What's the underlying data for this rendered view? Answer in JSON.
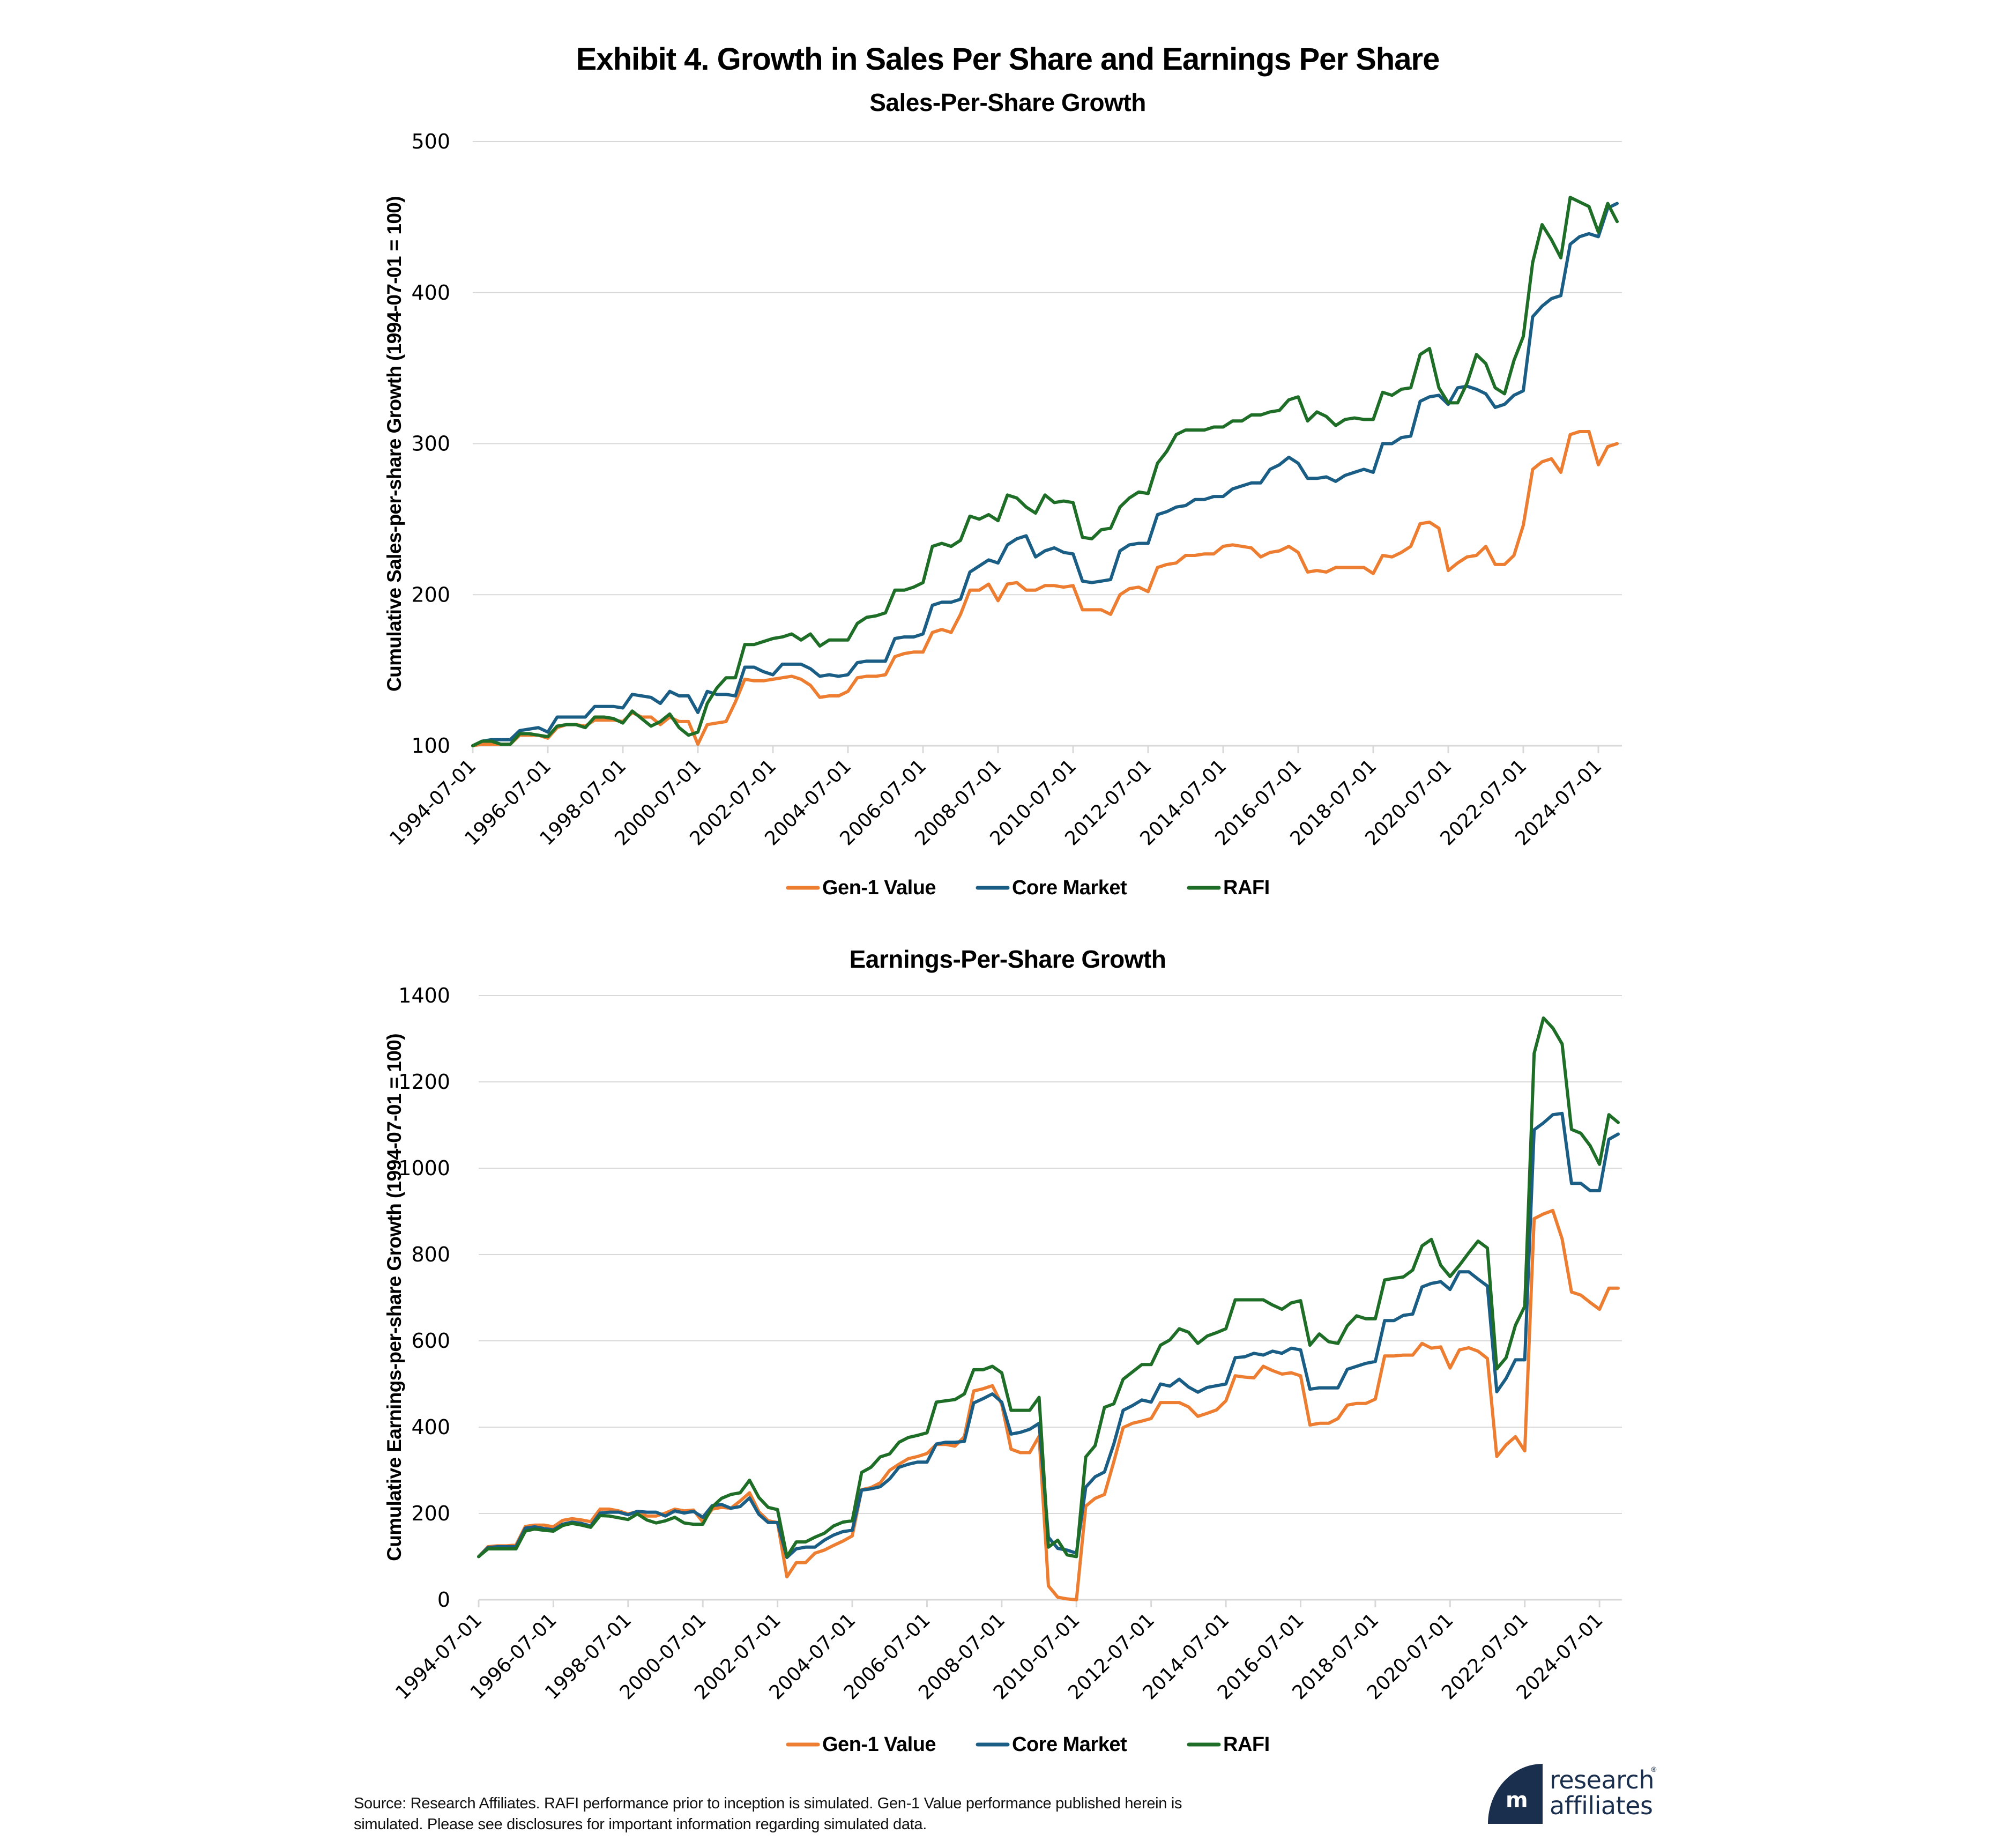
{
  "header": {
    "title": "Exhibit 4. Growth in Sales Per Share and Earnings Per Share"
  },
  "legend": [
    {
      "label": "Gen-1 Value",
      "color": "#ED7D31"
    },
    {
      "label": "Core Market",
      "color": "#1B5E85"
    },
    {
      "label": "RAFI",
      "color": "#1E6E28"
    }
  ],
  "footer": {
    "source_line1": "Source: Research Affiliates. RAFI performance prior to inception is simulated. Gen-1 Value performance published herein is",
    "source_line2": "simulated. Please see disclosures for important information regarding simulated data."
  },
  "logo": {
    "line1": "research",
    "line2": "affiliates",
    "registered": "®",
    "glyph": "m"
  },
  "chart_data": [
    {
      "type": "line",
      "title": "Sales-Per-Share Growth",
      "xlabel": "",
      "ylabel": "Cumulative Sales-per-share Growth (1994-07-01 = 100)",
      "x_start": "1994-07-01",
      "x_frequency": "quarterly",
      "x_end": "2025-01-01",
      "x_tick_labels": [
        "1994-07-01",
        "1996-07-01",
        "1998-07-01",
        "2000-07-01",
        "2002-07-01",
        "2004-07-01",
        "2006-07-01",
        "2008-07-01",
        "2010-07-01",
        "2012-07-01",
        "2014-07-01",
        "2016-07-01",
        "2018-07-01",
        "2020-07-01",
        "2022-07-01",
        "2024-07-01"
      ],
      "ylim": [
        100,
        500
      ],
      "y_ticks": [
        100,
        200,
        300,
        400,
        500
      ],
      "grid": true,
      "legend_position": "bottom-center",
      "series": [
        {
          "name": "Gen-1 Value",
          "color": "#ED7D31",
          "values": [
            100,
            101,
            101,
            101,
            101,
            107,
            107,
            107,
            105,
            112,
            114,
            114,
            113,
            117,
            117,
            117,
            116,
            122,
            119,
            119,
            114,
            119,
            116,
            116,
            101,
            114,
            115,
            116,
            129,
            144,
            143,
            143,
            144,
            145,
            146,
            144,
            140,
            132,
            133,
            133,
            136,
            145,
            146,
            146,
            147,
            159,
            161,
            162,
            162,
            175,
            177,
            175,
            187,
            203,
            203,
            207,
            196,
            207,
            208,
            203,
            203,
            206,
            206,
            205,
            206,
            190,
            190,
            190,
            187,
            200,
            204,
            205,
            202,
            218,
            220,
            221,
            226,
            226,
            227,
            227,
            232,
            233,
            232,
            231,
            225,
            228,
            229,
            232,
            228,
            215,
            216,
            215,
            218,
            218,
            218,
            218,
            214,
            226,
            225,
            228,
            232,
            247,
            248,
            244,
            216,
            221,
            225,
            226,
            232,
            220,
            220,
            226,
            246,
            283,
            288,
            290,
            281,
            306,
            308,
            308,
            286,
            298,
            300
          ]
        },
        {
          "name": "Core Market",
          "color": "#1B5E85",
          "values": [
            100,
            103,
            104,
            104,
            104,
            110,
            111,
            112,
            109,
            119,
            119,
            119,
            119,
            126,
            126,
            126,
            125,
            134,
            133,
            132,
            128,
            136,
            133,
            133,
            122,
            136,
            134,
            134,
            133,
            152,
            152,
            149,
            147,
            154,
            154,
            154,
            151,
            146,
            147,
            146,
            147,
            155,
            156,
            156,
            156,
            171,
            172,
            172,
            174,
            193,
            195,
            195,
            197,
            215,
            219,
            223,
            221,
            233,
            237,
            239,
            225,
            229,
            231,
            228,
            227,
            209,
            208,
            209,
            210,
            229,
            233,
            234,
            234,
            253,
            255,
            258,
            259,
            263,
            263,
            265,
            265,
            270,
            272,
            274,
            274,
            283,
            286,
            291,
            287,
            277,
            277,
            278,
            275,
            279,
            281,
            283,
            281,
            300,
            300,
            304,
            305,
            328,
            331,
            332,
            326,
            337,
            338,
            336,
            333,
            324,
            326,
            332,
            335,
            384,
            391,
            396,
            398,
            432,
            437,
            439,
            437,
            456,
            459
          ]
        },
        {
          "name": "RAFI",
          "color": "#1E6E28",
          "values": [
            100,
            103,
            103,
            101,
            101,
            108,
            108,
            107,
            106,
            113,
            114,
            114,
            112,
            119,
            119,
            118,
            115,
            123,
            118,
            113,
            116,
            121,
            112,
            107,
            109,
            128,
            138,
            145,
            145,
            167,
            167,
            169,
            171,
            172,
            174,
            170,
            174,
            166,
            170,
            170,
            170,
            181,
            185,
            186,
            188,
            203,
            203,
            205,
            208,
            232,
            234,
            232,
            236,
            252,
            250,
            253,
            249,
            266,
            264,
            258,
            254,
            266,
            261,
            262,
            261,
            238,
            237,
            243,
            244,
            258,
            264,
            268,
            267,
            287,
            295,
            306,
            309,
            309,
            309,
            311,
            311,
            315,
            315,
            319,
            319,
            321,
            322,
            329,
            331,
            315,
            321,
            318,
            312,
            316,
            317,
            316,
            316,
            334,
            332,
            336,
            337,
            359,
            363,
            337,
            327,
            327,
            340,
            359,
            353,
            337,
            333,
            355,
            371,
            420,
            445,
            435,
            423,
            463,
            460,
            457,
            440,
            459,
            447
          ]
        }
      ]
    },
    {
      "type": "line",
      "title": "Earnings-Per-Share Growth",
      "xlabel": "",
      "ylabel": "Cumulative Earnings-per-share Growth (1994-07-01 = 100)",
      "x_start": "1994-07-01",
      "x_frequency": "quarterly",
      "x_end": "2025-01-01",
      "x_tick_labels": [
        "1994-07-01",
        "1996-07-01",
        "1998-07-01",
        "2000-07-01",
        "2002-07-01",
        "2004-07-01",
        "2006-07-01",
        "2008-07-01",
        "2010-07-01",
        "2012-07-01",
        "2014-07-01",
        "2016-07-01",
        "2018-07-01",
        "2020-07-01",
        "2022-07-01",
        "2024-07-01"
      ],
      "ylim": [
        0,
        1400
      ],
      "y_ticks": [
        0,
        200,
        400,
        600,
        800,
        1000,
        1200,
        1400
      ],
      "grid": true,
      "legend_position": "bottom-center",
      "series": [
        {
          "name": "Gen-1 Value",
          "color": "#ED7D31",
          "values": [
            100,
            123,
            125,
            125,
            127,
            170,
            173,
            173,
            169,
            184,
            188,
            185,
            181,
            210,
            210,
            206,
            199,
            204,
            194,
            194,
            201,
            210,
            206,
            208,
            180,
            210,
            214,
            212,
            229,
            248,
            204,
            183,
            179,
            53,
            86,
            86,
            108,
            115,
            126,
            136,
            148,
            255,
            260,
            271,
            300,
            314,
            327,
            332,
            339,
            360,
            360,
            356,
            378,
            484,
            489,
            496,
            453,
            349,
            341,
            341,
            379,
            32,
            6,
            2,
            0,
            217,
            235,
            244,
            320,
            399,
            409,
            414,
            420,
            457,
            457,
            457,
            447,
            425,
            432,
            440,
            461,
            519,
            516,
            514,
            541,
            531,
            523,
            526,
            519,
            405,
            409,
            409,
            420,
            451,
            455,
            455,
            465,
            565,
            565,
            567,
            567,
            594,
            583,
            586,
            537,
            579,
            584,
            576,
            559,
            332,
            359,
            378,
            345,
            883,
            894,
            902,
            836,
            713,
            706,
            689,
            673,
            722,
            722
          ]
        },
        {
          "name": "Core Market",
          "color": "#1B5E85",
          "values": [
            100,
            121,
            123,
            123,
            123,
            166,
            169,
            165,
            162,
            175,
            180,
            177,
            171,
            201,
            203,
            203,
            197,
            205,
            203,
            203,
            194,
            206,
            201,
            205,
            191,
            218,
            221,
            212,
            216,
            236,
            198,
            179,
            179,
            98,
            118,
            122,
            122,
            138,
            150,
            158,
            161,
            254,
            257,
            262,
            280,
            307,
            314,
            319,
            319,
            361,
            365,
            365,
            367,
            456,
            466,
            477,
            458,
            384,
            388,
            395,
            409,
            145,
            119,
            115,
            108,
            261,
            285,
            296,
            361,
            439,
            450,
            463,
            458,
            500,
            495,
            511,
            493,
            481,
            492,
            496,
            500,
            561,
            563,
            571,
            567,
            576,
            571,
            583,
            579,
            488,
            491,
            491,
            491,
            534,
            541,
            548,
            552,
            647,
            647,
            659,
            662,
            725,
            733,
            737,
            719,
            760,
            760,
            743,
            727,
            482,
            513,
            556,
            556,
            1089,
            1105,
            1124,
            1127,
            965,
            965,
            948,
            948,
            1067,
            1079
          ]
        },
        {
          "name": "RAFI",
          "color": "#1E6E28",
          "values": [
            100,
            118,
            118,
            118,
            118,
            159,
            164,
            161,
            159,
            172,
            177,
            173,
            168,
            195,
            194,
            190,
            186,
            199,
            185,
            178,
            183,
            191,
            178,
            175,
            175,
            215,
            235,
            244,
            248,
            277,
            237,
            214,
            209,
            100,
            134,
            134,
            145,
            154,
            171,
            180,
            183,
            295,
            307,
            331,
            338,
            365,
            376,
            381,
            387,
            458,
            461,
            464,
            477,
            533,
            533,
            541,
            526,
            439,
            439,
            439,
            469,
            122,
            138,
            104,
            100,
            331,
            357,
            446,
            454,
            511,
            528,
            545,
            545,
            590,
            602,
            628,
            620,
            594,
            611,
            619,
            628,
            695,
            695,
            695,
            695,
            683,
            673,
            688,
            693,
            590,
            616,
            598,
            594,
            635,
            658,
            651,
            651,
            741,
            745,
            748,
            764,
            820,
            835,
            775,
            749,
            775,
            804,
            831,
            815,
            535,
            561,
            636,
            680,
            1266,
            1348,
            1325,
            1288,
            1090,
            1081,
            1052,
            1009,
            1124,
            1106
          ]
        }
      ]
    }
  ]
}
